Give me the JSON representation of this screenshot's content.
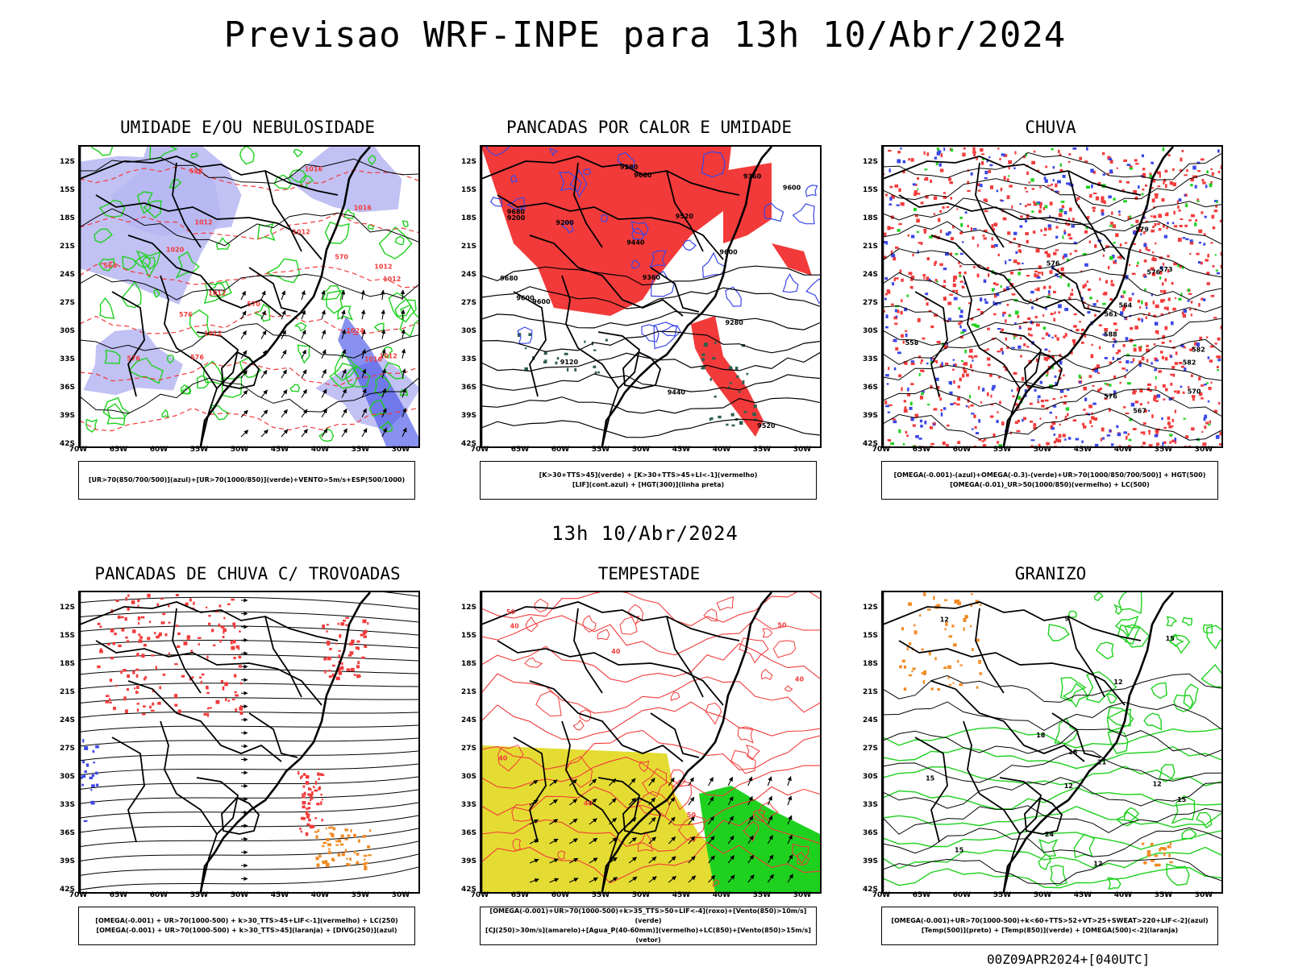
{
  "page": {
    "title": "Previsao WRF-INPE  para 13h 10/Abr/2024",
    "mid_title": "13h 10/Abr/2024",
    "footer": "00Z09APR2024+[040UTC]"
  },
  "axes": {
    "lat_labels": [
      "12S",
      "15S",
      "18S",
      "21S",
      "24S",
      "27S",
      "30S",
      "33S",
      "36S",
      "39S",
      "42S"
    ],
    "lon_labels": [
      "70W",
      "65W",
      "60W",
      "55W",
      "50W",
      "45W",
      "40W",
      "35W",
      "30W"
    ]
  },
  "colors": {
    "blue": "#3a47e6",
    "lavender": "#b6b6f2",
    "green": "#1fd11f",
    "red": "#f23a3a",
    "orange": "#f08a24",
    "yellow": "#e4dc32",
    "darkgreen": "#2f5f4f",
    "black": "#000000"
  },
  "panels": [
    {
      "title": "UMIDADE E/OU NEBULOSIDADE",
      "legend": [
        "[UR>70(850/700/500)](azul)+[UR>70(1000/850)](verde)+VENTO>5m/s+ESP(500/1000)"
      ],
      "contour_labels": [
        "1012",
        "1012",
        "1012",
        "1012",
        "1012",
        "1012",
        "1012",
        "1016",
        "1016",
        "1016",
        "1020",
        "1024",
        "570",
        "576",
        "576",
        "570",
        "576",
        "564",
        "588"
      ]
    },
    {
      "title": "PANCADAS POR CALOR E UMIDADE",
      "legend": [
        "[K>30+TTS>45](verde) + [K>30+TTS>45+LI<-1](vermelho)",
        "[LIF](cont.azul) + [HGT(300)](linha preta)"
      ],
      "contour_labels": [
        "9680",
        "9680",
        "9600",
        "9600",
        "9680",
        "9520",
        "9600",
        "9520",
        "9440",
        "9360",
        "9360",
        "9280",
        "9280",
        "9200",
        "9200",
        "9120",
        "9440",
        "9600"
      ]
    },
    {
      "title": "CHUVA",
      "legend": [
        "[OMEGA(-0.001)-(azul)+OMEGA(-0.3)-(verde)+UR>70(1000/850/700/500)] + HGT(500)",
        "[OMEGA(-0.01)_UR>50(1000/850)(vermelho) + LC(500)"
      ],
      "contour_labels": [
        "588",
        "582",
        "576",
        "582",
        "576",
        "579",
        "573",
        "576",
        "570",
        "567",
        "564",
        "561",
        "558"
      ]
    },
    {
      "title": "PANCADAS DE CHUVA C/ TROVOADAS",
      "legend": [
        "[OMEGA(-0.001) + UR>70(1000-500) + k>30_TTS>45+LIF<-1](vermelho) + LC(250)",
        "[OMEGA(-0.001) + UR>70(1000-500) + k>30_TTS>45](laranja) + [DIVG(250)](azul)"
      ],
      "contour_labels": []
    },
    {
      "title": "TEMPESTADE",
      "legend": [
        "[OMEGA(-0.001)+UR>70(1000-500)+k>35_TTS>50+LIF<-4](roxo)+[Vento(850)>10m/s](verde)",
        "[CJ(250)>30m/s](amarelo)+[Agua_P(40-60mm)](vermelho)+LC(850)+[Vento(850)>15m/s](vetor)"
      ],
      "contour_labels": [
        "40",
        "50",
        "40",
        "50",
        "40",
        "50",
        "40",
        "40"
      ]
    },
    {
      "title": "GRANIZO",
      "legend": [
        "[OMEGA(-0.001)+UR>70(1000-500)+k<60+TTS>52+VT>25+SWEAT>220+LIF<-2](azul)",
        "[Temp(500)](preto) + [Temp(850)](verde) + [OMEGA(500)<-2](laranja)"
      ],
      "contour_labels": [
        "12",
        "12",
        "15",
        "15",
        "12",
        "9",
        "12",
        "15",
        "18",
        "21",
        "24",
        "18",
        "12",
        "15"
      ]
    }
  ]
}
